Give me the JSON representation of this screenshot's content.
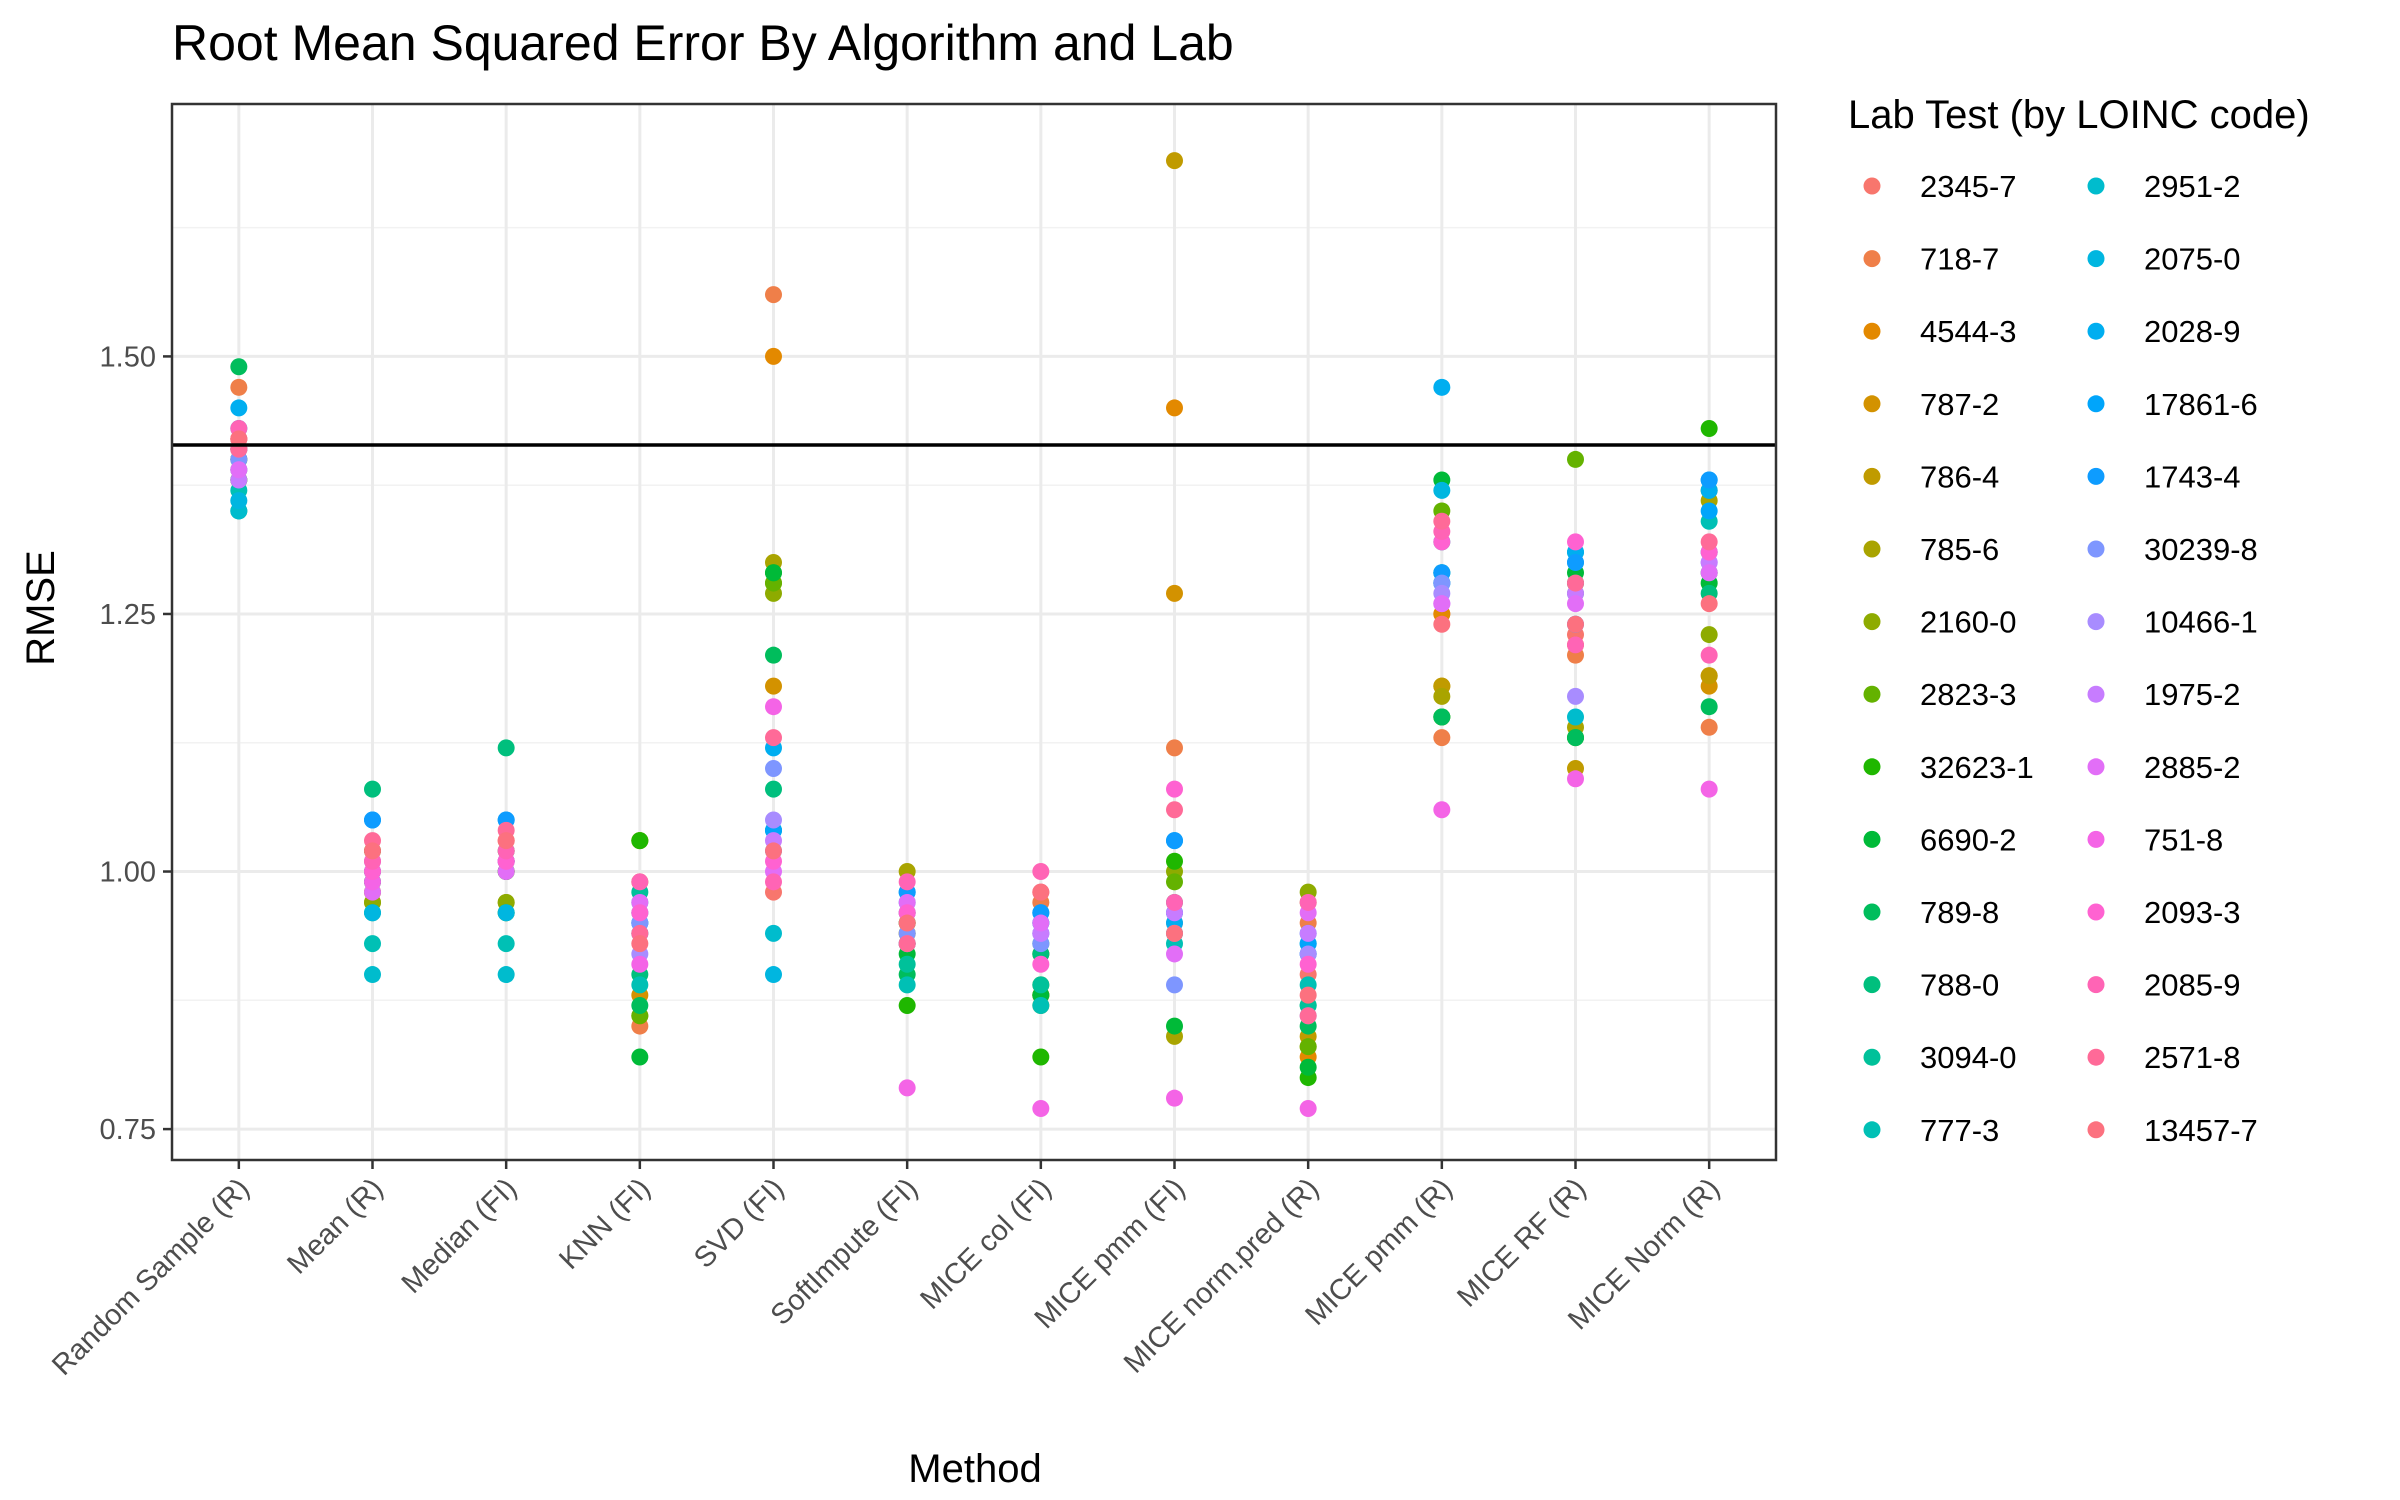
{
  "chart_data": {
    "type": "scatter",
    "title": "Root Mean Squared Error By Algorithm and Lab",
    "xlabel": "Method",
    "ylabel": "RMSE",
    "ylim": [
      0.72,
      1.745
    ],
    "yticks": [
      0.75,
      1.0,
      1.25,
      1.5
    ],
    "ytick_labels": [
      "0.75",
      "1.00",
      "1.25",
      "1.50"
    ],
    "grid": true,
    "reference_line": {
      "y": 1.414
    },
    "legend": {
      "title": "Lab Test (by LOINC code)",
      "position": "right",
      "columns": 2
    },
    "categories": [
      "Random Sample (R)",
      "Mean (R)",
      "Median (FI)",
      "KNN (FI)",
      "SVD (FI)",
      "SoftImpute (FI)",
      "MICE col (FI)",
      "MICE pmm (FI)",
      "MICE norm.pred (R)",
      "MICE pmm (R)",
      "MICE RF (R)",
      "MICE Norm (R)"
    ],
    "series": [
      {
        "name": "2345-7",
        "color": "#F8766D",
        "values": [
          1.42,
          1.0,
          1.01,
          0.94,
          0.98,
          0.93,
          0.92,
          0.95,
          0.9,
          1.25,
          1.23,
          1.29
        ]
      },
      {
        "name": "718-7",
        "color": "#EF7F49",
        "values": [
          1.47,
          1.02,
          1.03,
          0.85,
          1.56,
          0.96,
          0.97,
          1.12,
          0.95,
          1.13,
          1.21,
          1.14
        ]
      },
      {
        "name": "4544-3",
        "color": "#E38900",
        "values": [
          1.4,
          0.99,
          1.0,
          0.86,
          1.5,
          0.95,
          0.88,
          1.45,
          0.82,
          1.25,
          1.22,
          1.19
        ]
      },
      {
        "name": "787-2",
        "color": "#D39200",
        "values": [
          1.41,
          0.98,
          1.02,
          0.88,
          1.18,
          0.94,
          0.88,
          1.27,
          0.83,
          1.18,
          1.28,
          1.18
        ]
      },
      {
        "name": "786-4",
        "color": "#C09B00",
        "values": [
          1.42,
          0.97,
          0.97,
          0.99,
          1.28,
          0.95,
          0.87,
          1.69,
          0.84,
          1.18,
          1.1,
          1.19
        ]
      },
      {
        "name": "785-6",
        "color": "#A9A400",
        "values": [
          1.4,
          0.98,
          0.96,
          1.03,
          1.3,
          1.0,
          0.88,
          0.84,
          0.97,
          1.17,
          1.14,
          1.36
        ]
      },
      {
        "name": "2160-0",
        "color": "#8EAB00",
        "values": [
          1.41,
          0.97,
          0.97,
          1.03,
          1.27,
          0.94,
          0.89,
          1.0,
          0.98,
          1.15,
          1.13,
          1.23
        ]
      },
      {
        "name": "2823-3",
        "color": "#64B200",
        "values": [
          1.38,
          1.0,
          1.0,
          0.86,
          1.28,
          0.93,
          0.92,
          0.99,
          0.83,
          1.35,
          1.4,
          1.37
        ]
      },
      {
        "name": "32623-1",
        "color": "#1FB700",
        "values": [
          1.38,
          1.02,
          1.01,
          1.03,
          1.29,
          0.87,
          0.82,
          1.01,
          0.8,
          1.15,
          1.13,
          1.43
        ]
      },
      {
        "name": "6690-2",
        "color": "#00BA38",
        "values": [
          1.39,
          0.99,
          1.0,
          0.82,
          1.29,
          0.92,
          0.88,
          0.85,
          0.81,
          1.38,
          1.29,
          1.28
        ]
      },
      {
        "name": "789-8",
        "color": "#00BD5C",
        "values": [
          1.49,
          0.96,
          0.96,
          0.87,
          1.21,
          0.9,
          0.93,
          0.97,
          0.85,
          1.15,
          1.13,
          1.16
        ]
      },
      {
        "name": "788-0",
        "color": "#00BF7D",
        "values": [
          1.35,
          1.08,
          1.12,
          0.9,
          1.08,
          0.95,
          0.92,
          0.94,
          0.87,
          1.29,
          1.27,
          1.27
        ]
      },
      {
        "name": "3094-0",
        "color": "#00C19A",
        "values": [
          1.4,
          0.99,
          1.02,
          0.98,
          1.04,
          0.91,
          0.89,
          0.94,
          0.87,
          1.28,
          1.28,
          1.29
        ]
      },
      {
        "name": "777-3",
        "color": "#00C0B5",
        "values": [
          1.37,
          0.93,
          0.93,
          0.89,
          1.04,
          0.89,
          0.87,
          0.93,
          0.89,
          1.32,
          1.31,
          1.34
        ]
      },
      {
        "name": "2951-2",
        "color": "#00BCCD",
        "values": [
          1.35,
          0.9,
          0.9,
          0.97,
          0.94,
          0.96,
          0.95,
          0.96,
          0.93,
          1.29,
          1.15,
          1.31
        ]
      },
      {
        "name": "2075-0",
        "color": "#00B6E0",
        "values": [
          1.36,
          0.96,
          0.96,
          0.96,
          0.9,
          0.98,
          0.96,
          1.03,
          0.92,
          1.37,
          1.3,
          1.38
        ]
      },
      {
        "name": "2028-9",
        "color": "#00AEF0",
        "values": [
          1.45,
          1.05,
          1.05,
          0.95,
          1.12,
          0.97,
          0.94,
          0.95,
          0.94,
          1.47,
          1.31,
          1.37
        ]
      },
      {
        "name": "17861-6",
        "color": "#00A5FB",
        "values": [
          1.43,
          1.0,
          1.01,
          0.95,
          1.04,
          0.93,
          0.95,
          0.96,
          0.93,
          1.28,
          1.24,
          1.35
        ]
      },
      {
        "name": "1743-4",
        "color": "#0E9CFF",
        "values": [
          1.41,
          1.05,
          1.05,
          0.94,
          1.02,
          0.98,
          0.96,
          1.03,
          0.92,
          1.29,
          1.3,
          1.38
        ]
      },
      {
        "name": "30239-8",
        "color": "#7E96FF",
        "values": [
          1.4,
          1.0,
          1.01,
          0.95,
          1.1,
          0.94,
          0.93,
          0.89,
          0.86,
          1.28,
          1.24,
          1.3
        ]
      },
      {
        "name": "10466-1",
        "color": "#A88CFF",
        "values": [
          1.39,
          1.01,
          1.01,
          0.92,
          1.05,
          0.93,
          0.94,
          0.94,
          0.92,
          1.27,
          1.17,
          1.31
        ]
      },
      {
        "name": "1975-2",
        "color": "#C77CFF",
        "values": [
          1.38,
          1.01,
          1.01,
          0.96,
          1.03,
          0.96,
          0.94,
          0.96,
          0.94,
          1.26,
          1.27,
          1.3
        ]
      },
      {
        "name": "2885-2",
        "color": "#E26EF7",
        "values": [
          1.39,
          0.98,
          1.0,
          0.97,
          1.0,
          0.97,
          0.95,
          0.92,
          0.96,
          1.26,
          1.26,
          1.29
        ]
      },
      {
        "name": "751-8",
        "color": "#F464E6",
        "values": [
          1.41,
          0.99,
          1.01,
          0.91,
          1.16,
          0.79,
          0.77,
          0.78,
          0.77,
          1.06,
          1.09,
          1.08
        ]
      },
      {
        "name": "2093-3",
        "color": "#FF62D1",
        "values": [
          1.42,
          1.0,
          1.01,
          0.96,
          1.01,
          0.96,
          0.91,
          1.08,
          0.91,
          1.32,
          1.32,
          1.31
        ]
      },
      {
        "name": "2085-9",
        "color": "#FF64B5",
        "values": [
          1.43,
          1.01,
          1.02,
          0.99,
          0.99,
          0.99,
          1.0,
          0.97,
          0.97,
          1.33,
          1.22,
          1.21
        ]
      },
      {
        "name": "2571-8",
        "color": "#FF6A98",
        "values": [
          1.41,
          1.03,
          1.04,
          0.94,
          1.13,
          0.93,
          0.98,
          1.06,
          0.86,
          1.34,
          1.28,
          1.32
        ]
      },
      {
        "name": "13457-7",
        "color": "#FC717F",
        "values": [
          1.42,
          1.02,
          1.03,
          0.93,
          1.02,
          0.95,
          0.98,
          0.94,
          0.88,
          1.24,
          1.24,
          1.26
        ]
      }
    ]
  }
}
